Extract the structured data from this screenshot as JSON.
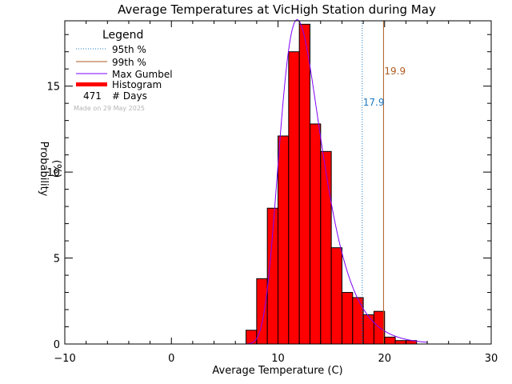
{
  "chart_data": {
    "type": "bar",
    "title": "Average Temperatures at VicHigh Station during May",
    "xlabel": "Average Temperature (C)",
    "ylabel_line1": "Probability",
    "ylabel_line2": "(%)",
    "xlim": [
      -10,
      30
    ],
    "ylim": [
      0,
      18.8
    ],
    "xticks": [
      -10,
      0,
      10,
      20,
      30
    ],
    "yticks": [
      0,
      5,
      10,
      15
    ],
    "bin_width": 1,
    "histogram": {
      "name": "Histogram",
      "bins": [
        {
          "start": 7,
          "value": 0.8
        },
        {
          "start": 8,
          "value": 3.8
        },
        {
          "start": 9,
          "value": 7.9
        },
        {
          "start": 10,
          "value": 12.1
        },
        {
          "start": 11,
          "value": 17.0
        },
        {
          "start": 12,
          "value": 18.6
        },
        {
          "start": 13,
          "value": 12.8
        },
        {
          "start": 14,
          "value": 11.2
        },
        {
          "start": 15,
          "value": 5.6
        },
        {
          "start": 16,
          "value": 3.0
        },
        {
          "start": 17,
          "value": 2.7
        },
        {
          "start": 18,
          "value": 1.7
        },
        {
          "start": 19,
          "value": 1.9
        },
        {
          "start": 20,
          "value": 0.4
        },
        {
          "start": 21,
          "value": 0.2
        },
        {
          "start": 22,
          "value": 0.2
        }
      ]
    },
    "gumbel": {
      "name": "Max Gumbel",
      "mode": 11.8,
      "scale": 1.95,
      "range": [
        7.0,
        24.0
      ]
    },
    "percentile_95": {
      "label": "95th %",
      "value": 17.9,
      "value_label": "17.9"
    },
    "percentile_99": {
      "label": "99th %",
      "value": 19.9,
      "value_label": "19.9"
    },
    "legend": {
      "title": "Legend",
      "days_count": "471",
      "days_label": "# Days",
      "made_on": "Made on 29 May 2025"
    },
    "colors": {
      "histogram_fill": "#ff0000",
      "p95": "#1a78c2",
      "p99": "#b05a20",
      "gumbel": "#7f00ff",
      "made_on": "#b4b4b4"
    }
  }
}
